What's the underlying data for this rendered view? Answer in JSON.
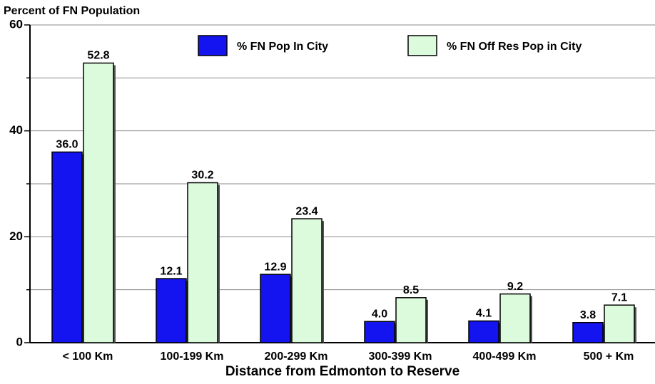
{
  "chart_data": {
    "type": "bar",
    "title": "Percent of FN Population",
    "x_label": "Distance from Edmonton to Reserve",
    "categories": [
      "< 100 Km",
      "100-199 Km",
      "200-299 Km",
      "300-399 Km",
      "400-499 Km",
      "500 + Km"
    ],
    "series": [
      {
        "name": "% FN Pop In City",
        "color": "#1414f0",
        "values": [
          36.0,
          12.1,
          12.9,
          4.0,
          4.1,
          3.8
        ],
        "value_labels": [
          "36.0",
          "12.1",
          "12.9",
          "4.0",
          "4.1",
          "3.8"
        ]
      },
      {
        "name": "% FN Off Res Pop in City",
        "color": "#dcfadc",
        "values": [
          52.8,
          30.2,
          23.4,
          8.5,
          9.2,
          7.1
        ],
        "value_labels": [
          "52.8",
          "30.2",
          "23.4",
          "8.5",
          "9.2",
          "7.1"
        ]
      }
    ],
    "ylim": [
      0,
      60
    ],
    "yticks": [
      0,
      20,
      40,
      60
    ],
    "minor_yticks": [
      10,
      30,
      50
    ],
    "grid": true,
    "legend": "top"
  }
}
